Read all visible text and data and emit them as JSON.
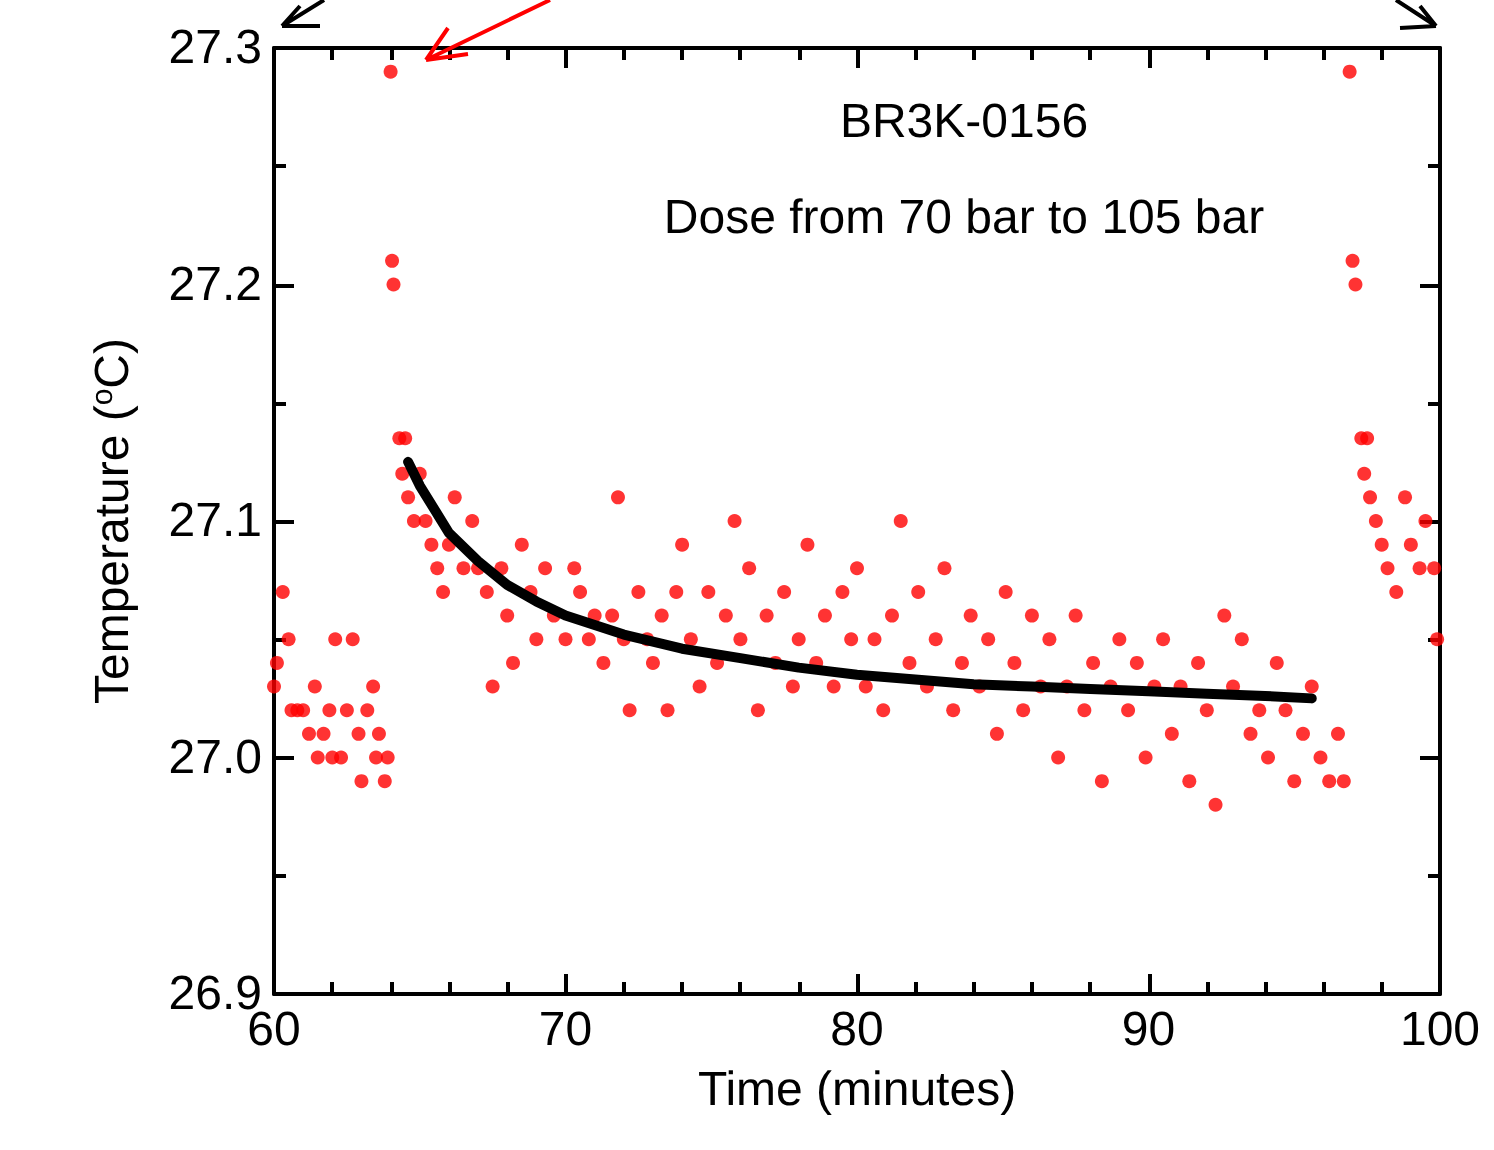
{
  "chart_data": {
    "type": "scatter",
    "annotations": [
      "BR3K-0156",
      "Dose from 70 bar to 105 bar"
    ],
    "xlabel": "Time (minutes)",
    "ylabel": "Temperature ($^{o}$C)",
    "xlim": [
      60,
      100
    ],
    "xticks": [
      60,
      70,
      80,
      90,
      100
    ],
    "ylim": [
      26.9,
      27.3
    ],
    "yticks": [
      26.9,
      {
        "value": 27,
        "label": "27.0"
      },
      27.1,
      27.2,
      27.3
    ],
    "grid": false,
    "series": [
      {
        "color": "#ff0000",
        "marker": "circle",
        "x": [
          60.0,
          60.1,
          60.3,
          60.5,
          60.6,
          60.8,
          61.0,
          61.2,
          61.4,
          61.5,
          61.7,
          61.9,
          62.0,
          62.1,
          62.3,
          62.5,
          62.7,
          62.9,
          63.0,
          63.2,
          63.4,
          63.5,
          63.6,
          63.8,
          63.9,
          64.0,
          64.05,
          64.1,
          64.3,
          64.5,
          64.4,
          64.6,
          64.8,
          65.0,
          65.2,
          65.4,
          65.6,
          65.8,
          66.0,
          66.2,
          66.5,
          66.8,
          67.0,
          67.3,
          67.5,
          67.8,
          68.0,
          68.2,
          68.5,
          68.8,
          69.0,
          69.3,
          69.6,
          70.0,
          70.3,
          70.5,
          70.8,
          71.0,
          71.3,
          71.6,
          71.8,
          72.0,
          72.2,
          72.5,
          72.8,
          73.0,
          73.3,
          73.5,
          73.8,
          74.0,
          74.3,
          74.6,
          74.9,
          75.2,
          75.5,
          75.8,
          76.0,
          76.3,
          76.6,
          76.9,
          77.2,
          77.5,
          77.8,
          78.0,
          78.3,
          78.6,
          78.9,
          79.2,
          79.5,
          79.8,
          80.0,
          80.3,
          80.6,
          80.9,
          81.2,
          81.5,
          81.8,
          82.1,
          82.4,
          82.7,
          83.0,
          83.3,
          83.6,
          83.9,
          84.2,
          84.5,
          84.8,
          85.1,
          85.4,
          85.7,
          86.0,
          86.3,
          86.6,
          86.9,
          87.2,
          87.5,
          87.8,
          88.1,
          88.4,
          88.7,
          89.0,
          89.3,
          89.6,
          89.9,
          90.2,
          90.5,
          90.8,
          91.1,
          91.4,
          91.7,
          92.0,
          92.3,
          92.6,
          92.9,
          93.2,
          93.5,
          93.8,
          94.1,
          94.4,
          94.7,
          95.0,
          95.3,
          95.6,
          95.9,
          96.2,
          96.5,
          96.7,
          96.9,
          97.0,
          97.1,
          97.3,
          97.5,
          97.4,
          97.6,
          97.8,
          98.0,
          98.2,
          98.5,
          98.8,
          99.0,
          99.3,
          99.5,
          99.8,
          99.9
        ],
        "values": [
          27.03,
          27.04,
          27.07,
          27.05,
          27.02,
          27.02,
          27.02,
          27.01,
          27.03,
          27.0,
          27.01,
          27.02,
          27.0,
          27.05,
          27.0,
          27.02,
          27.05,
          27.01,
          26.99,
          27.02,
          27.03,
          27.0,
          27.01,
          26.99,
          27.0,
          27.29,
          27.21,
          27.2,
          27.135,
          27.135,
          27.12,
          27.11,
          27.1,
          27.12,
          27.1,
          27.09,
          27.08,
          27.07,
          27.09,
          27.11,
          27.08,
          27.1,
          27.08,
          27.07,
          27.03,
          27.08,
          27.06,
          27.04,
          27.09,
          27.07,
          27.05,
          27.08,
          27.06,
          27.05,
          27.08,
          27.07,
          27.05,
          27.06,
          27.04,
          27.06,
          27.11,
          27.05,
          27.02,
          27.07,
          27.05,
          27.04,
          27.06,
          27.02,
          27.07,
          27.09,
          27.05,
          27.03,
          27.07,
          27.04,
          27.06,
          27.1,
          27.05,
          27.08,
          27.02,
          27.06,
          27.04,
          27.07,
          27.03,
          27.05,
          27.09,
          27.04,
          27.06,
          27.03,
          27.07,
          27.05,
          27.08,
          27.03,
          27.05,
          27.02,
          27.06,
          27.1,
          27.04,
          27.07,
          27.03,
          27.05,
          27.08,
          27.02,
          27.04,
          27.06,
          27.03,
          27.05,
          27.01,
          27.07,
          27.04,
          27.02,
          27.06,
          27.03,
          27.05,
          27.0,
          27.03,
          27.06,
          27.02,
          27.04,
          26.99,
          27.03,
          27.05,
          27.02,
          27.04,
          27.0,
          27.03,
          27.05,
          27.01,
          27.03,
          26.99,
          27.04,
          27.02,
          26.98,
          27.06,
          27.03,
          27.05,
          27.01,
          27.02,
          27.0,
          27.04,
          27.02,
          26.99,
          27.01,
          27.03,
          27.0,
          26.99,
          27.01,
          26.99,
          27.29,
          27.21,
          27.2,
          27.135,
          27.135,
          27.12,
          27.11,
          27.1,
          27.09,
          27.08,
          27.07,
          27.11,
          27.09,
          27.08,
          27.1,
          27.08,
          27.05
        ]
      },
      {
        "type": "line",
        "color": "#000000",
        "marker": "none",
        "line_style": "solid",
        "x": [
          64.6,
          65,
          66,
          67,
          68,
          69,
          70,
          72,
          74,
          76,
          78,
          80,
          82,
          84,
          86,
          88,
          90,
          92,
          94,
          95.6
        ],
        "values": [
          27.125,
          27.115,
          27.095,
          27.083,
          27.073,
          27.066,
          27.06,
          27.052,
          27.046,
          27.042,
          27.038,
          27.035,
          27.033,
          27.031,
          27.03,
          27.029,
          27.028,
          27.027,
          27.026,
          27.025
        ]
      }
    ]
  }
}
